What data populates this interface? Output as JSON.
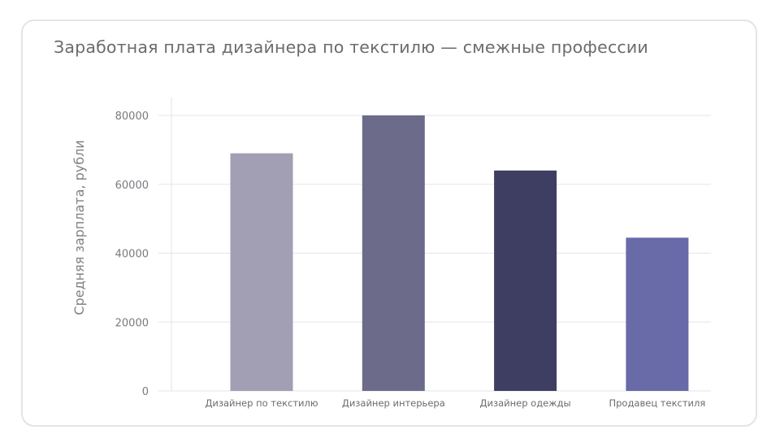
{
  "chart_data": {
    "type": "bar",
    "title": "Заработная плата дизайнера по текстилю — смежные профессии",
    "xlabel": "",
    "ylabel": "Средняя зарплата, рубли",
    "categories": [
      "Дизайнер по текстилю",
      "Дизайнер интерьера",
      "Дизайнер одежды",
      "Продавец текстиля"
    ],
    "values": [
      69000,
      80000,
      64000,
      44500
    ],
    "colors": [
      "#a29fb4",
      "#6c6b8a",
      "#3e3e63",
      "#696aa8"
    ],
    "ylim": [
      0,
      80000
    ],
    "yticks": [
      0,
      20000,
      40000,
      60000,
      80000
    ],
    "grid": true,
    "legend": "none"
  }
}
